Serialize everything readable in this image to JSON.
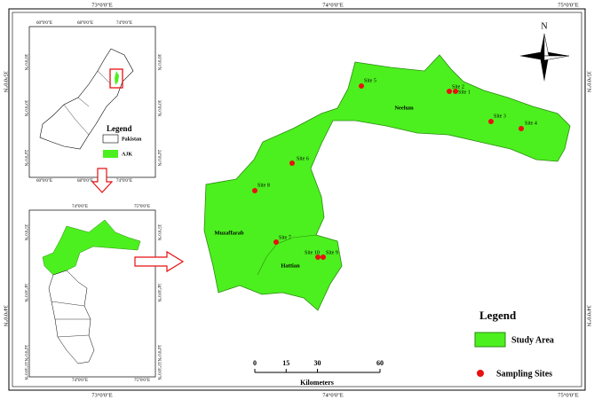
{
  "map": {
    "border_labels": {
      "top": [
        "73°0'0\"E",
        "74°0'0\"E",
        "75°0'0\"E"
      ],
      "bottom": [
        "73°0'0\"E",
        "74°0'0\"E",
        "75°0'0\"E"
      ],
      "left": [
        "35°0'0\"N",
        "34°0'0\"N"
      ],
      "right": [
        "35°0'0\"N",
        "34°0'0\"N"
      ]
    },
    "inset_pakistan": {
      "top": [
        "60°0'0\"E",
        "68°0'0\"E",
        "74°0'0\"E"
      ],
      "bottom": [
        "60°0'0\"E",
        "68°0'0\"E",
        "74°0'0\"E"
      ],
      "left": [
        "36°0'0\"N",
        "30°0'0\"N",
        "24°0'0\"N"
      ],
      "right": [
        "36°0'0\"N",
        "30°0'0\"N",
        "24°0'0\"N"
      ],
      "legend": {
        "title": "Legend",
        "items": [
          "Pakistan",
          "AJK"
        ]
      }
    },
    "inset_ajk": {
      "top": [
        "74°0'0\"E",
        "75°0'0\"E"
      ],
      "bottom": [
        "74°0'0\"E",
        "75°0'0\"E"
      ],
      "left": [
        "35°0'0\"N",
        "34°30'0\"N",
        "34°0'0\"N",
        "33°30'0\"N"
      ],
      "right": [
        "35°0'0\"N",
        "34°30'0\"N",
        "34°0'0\"N",
        "33°30'0\"N"
      ]
    },
    "districts": [
      "Neelum",
      "Muzaffarab",
      "Hattian"
    ],
    "sites": [
      "Site 1",
      "Site 2",
      "Site 3",
      "Site 4",
      "Site 5",
      "Site 6",
      "Site 7",
      "Site 8",
      "Site 9",
      "Site 10"
    ],
    "scale_bar": {
      "ticks": [
        0,
        15,
        30,
        60
      ],
      "unit": "Kilometers"
    },
    "north": "N",
    "legend": {
      "title": "Legend",
      "items": [
        "Study Area",
        "Sampling Sites"
      ]
    }
  }
}
